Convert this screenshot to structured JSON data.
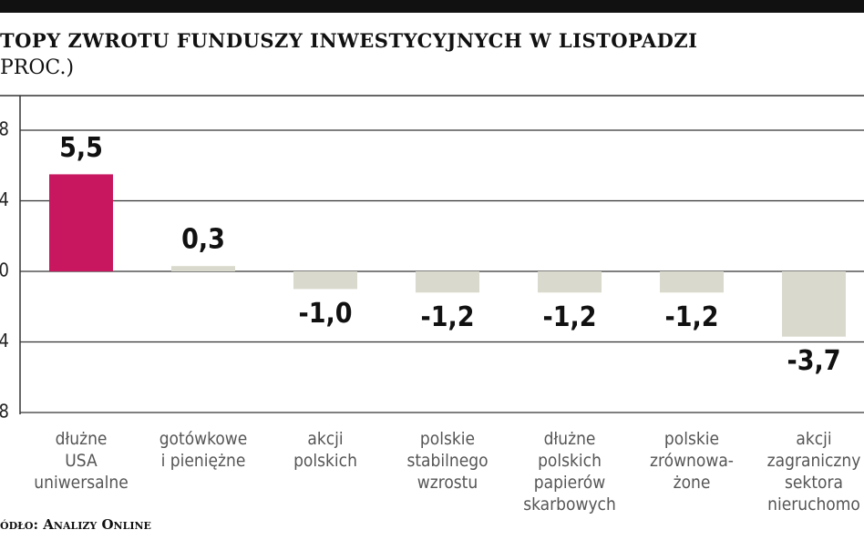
{
  "chart_data": {
    "type": "bar",
    "title": "TOPY ZWROTU FUNDUSZY INWESTYCYJNYCH W LISTOPADZI",
    "subtitle": "PROC.)",
    "source": "ódło: Analizy Online",
    "categories": [
      "dłużne\nUSA\nuniwersalne",
      "gotówkowe\ni pieniężne",
      "akcji\npolskich",
      "polskie\nstabilnego\nwzrostu",
      "dłużne\npolskich\npapierów\nskarbowych",
      "polskie\nzrównowa-\nżone",
      "akcji\nzagraniczny\nsektora\nnieruchomo"
    ],
    "values": [
      5.5,
      0.3,
      -1.0,
      -1.2,
      -1.2,
      -1.2,
      -3.7
    ],
    "value_labels": [
      "5,5",
      "0,3",
      "-1,0",
      "-1,2",
      "-1,2",
      "-1,2",
      "-3,7"
    ],
    "colors": [
      "#c8175e",
      "#d9d9cd",
      "#d9d9cd",
      "#d9d9cd",
      "#d9d9cd",
      "#d9d9cd",
      "#d9d9cd"
    ],
    "ylim": [
      -8,
      8
    ],
    "yticks": [
      8,
      4,
      0,
      {
        "value": -4,
        "label": "4"
      },
      {
        "value": -8,
        "label": "8"
      }
    ],
    "grid": true
  }
}
